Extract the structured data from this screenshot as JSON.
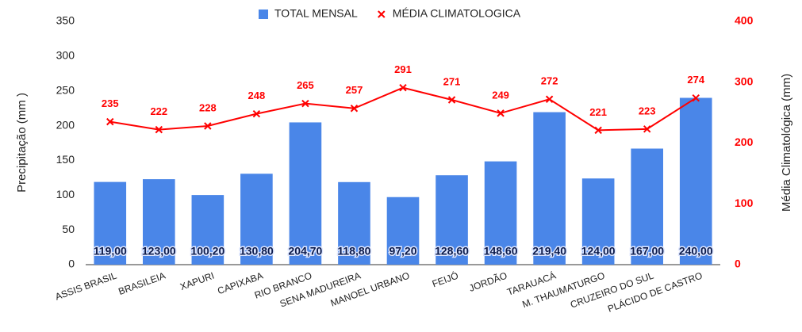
{
  "chart_data": {
    "type": "bar",
    "categories": [
      "ASSIS BRASIL",
      "BRASILEIA",
      "XAPURI",
      "CAPIXABA",
      "RIO BRANCO",
      "SENA MADUREIRA",
      "MANOEL URBANO",
      "FEIJÓ",
      "JORDÃO",
      "TARAUACÁ",
      "M. THAUMATURGO",
      "CRUZEIRO DO SUL",
      "PLÁCIDO DE CASTRO"
    ],
    "series": [
      {
        "name": "TOTAL MENSAL",
        "type": "bar",
        "color": "#4a86e8",
        "values": [
          119,
          123,
          100.2,
          130.8,
          204.7,
          118.8,
          97.2,
          128.6,
          148.6,
          219.4,
          124,
          167,
          240
        ],
        "value_labels": [
          "119,00",
          "123,00",
          "100,20",
          "130,80",
          "204,70",
          "118,80",
          "97,20",
          "128,60",
          "148,60",
          "219,40",
          "124,00",
          "167,00",
          "240,00"
        ]
      },
      {
        "name": "MÉDIA CLIMATOLOGICA",
        "type": "line",
        "axis": "y2",
        "color": "#ff0000",
        "marker": "x",
        "values": [
          235,
          222,
          228,
          248,
          265,
          257,
          291,
          271,
          249,
          272,
          221,
          223,
          274
        ]
      }
    ],
    "y_label": "Precipitação (mm )",
    "y2_label": "Média Climatológica (mm)",
    "ylim": [
      0,
      350
    ],
    "yticks": [
      0,
      50,
      100,
      150,
      200,
      250,
      300,
      350
    ],
    "y2lim": [
      0,
      400
    ],
    "y2ticks": [
      0,
      100,
      200,
      300,
      400
    ],
    "y2_color": "#ff0000",
    "legend": "top"
  }
}
